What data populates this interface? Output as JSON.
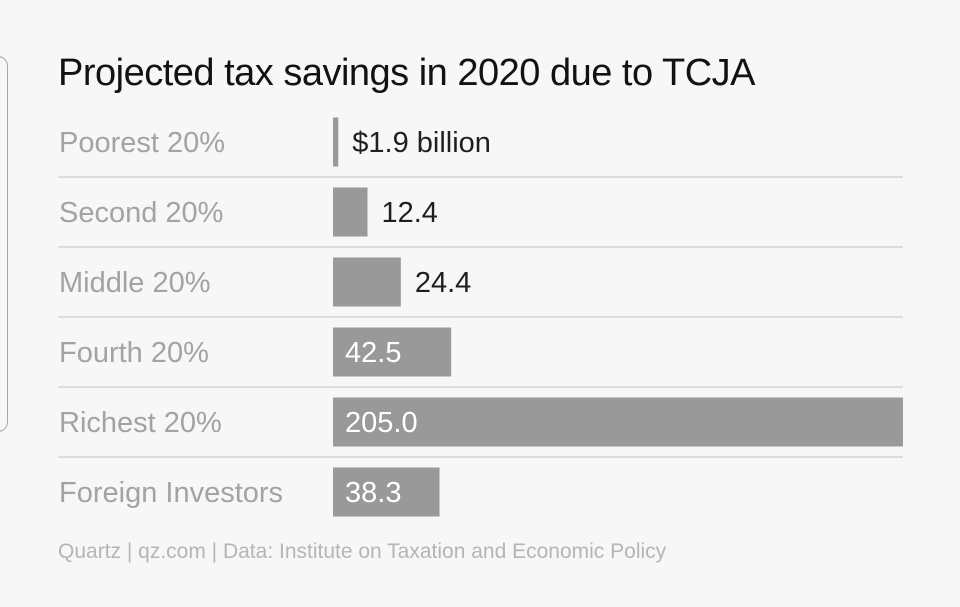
{
  "chart_data": {
    "type": "bar",
    "orientation": "horizontal",
    "title": "Projected tax savings in 2020 due to TCJA",
    "categories": [
      "Poorest 20%",
      "Second 20%",
      "Middle 20%",
      "Fourth 20%",
      "Richest 20%",
      "Foreign Investors"
    ],
    "values": [
      1.9,
      12.4,
      24.4,
      42.5,
      205.0,
      38.3
    ],
    "value_labels": [
      "$1.9 billion",
      "12.4",
      "24.4",
      "42.5",
      "205.0",
      "38.3"
    ],
    "unit": "billion USD",
    "xlim": [
      0,
      205.0
    ],
    "xlabel": "",
    "ylabel": "",
    "grid": false,
    "legend": "none"
  },
  "footer": "Quartz | qz.com | Data: Institute on Taxation and Economic Policy",
  "colors": {
    "bar": "#999999",
    "category_label": "#a3a3a3",
    "value_label_outside": "#1f1f1f",
    "value_label_inside": "#ffffff",
    "separator": "#dddddd",
    "background": "#f7f7f7",
    "title": "#121212",
    "footer": "#b5b5b5"
  }
}
